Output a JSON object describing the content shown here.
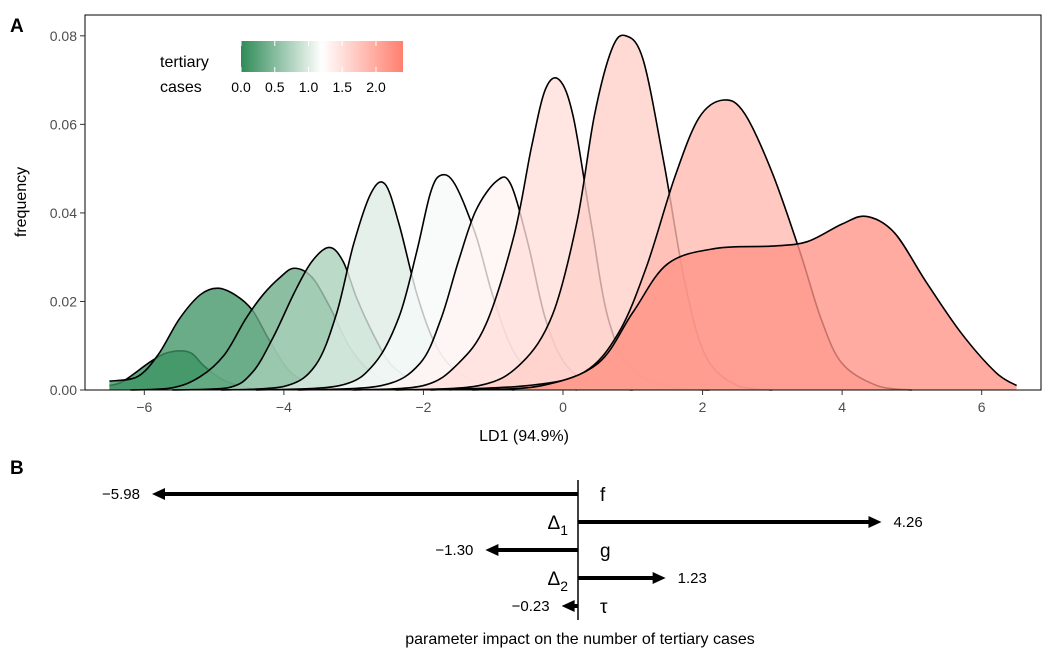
{
  "panel_a": {
    "letter": "A",
    "chart_data": {
      "type": "area",
      "xlabel": "LD1 (94.9%)",
      "ylabel": "frequency",
      "xlim": [
        -6.85,
        6.85
      ],
      "ylim": [
        0,
        0.0847
      ],
      "xticks": [
        -6,
        -4,
        -2,
        0,
        2,
        4,
        6
      ],
      "xtick_labels": [
        "−6",
        "−4",
        "−2",
        "0",
        "2",
        "4",
        "6"
      ],
      "yticks": [
        0,
        0.02,
        0.04,
        0.06,
        0.08
      ],
      "ytick_labels": [
        "0.00",
        "0.02",
        "0.04",
        "0.06",
        "0.08"
      ],
      "legend": {
        "title_line1": "tertiary",
        "title_line2": "cases",
        "position": "top-left",
        "range": [
          0,
          2.4
        ],
        "ticks": [
          0,
          0.5,
          1,
          1.5,
          2
        ],
        "tick_labels": [
          "0.0",
          "0.5",
          "1.0",
          "1.5",
          "2.0"
        ],
        "colors": [
          "#2e8b57",
          "#ffffff",
          "#ff7f6e"
        ]
      },
      "series": [
        {
          "tertiary_cases": 0.03,
          "points": [
            [
              -6.5,
              0.001
            ],
            [
              -6.3,
              0.002
            ],
            [
              -5.9,
              0.0065
            ],
            [
              -5.65,
              0.0085
            ],
            [
              -5.35,
              0.0085
            ],
            [
              -5.15,
              0.0055
            ],
            [
              -4.9,
              0.0025
            ],
            [
              -4.6,
              0.0008
            ],
            [
              -4.3,
              0.0001
            ]
          ]
        },
        {
          "tertiary_cases": 0.1,
          "points": [
            [
              -6.5,
              0.002
            ],
            [
              -6.1,
              0.003
            ],
            [
              -5.8,
              0.008
            ],
            [
              -5.5,
              0.016
            ],
            [
              -5.2,
              0.0215
            ],
            [
              -4.95,
              0.023
            ],
            [
              -4.7,
              0.0215
            ],
            [
              -4.45,
              0.018
            ],
            [
              -4.2,
              0.011
            ],
            [
              -3.9,
              0.004
            ],
            [
              -3.5,
              0.001
            ],
            [
              -3.0,
              0
            ]
          ]
        },
        {
          "tertiary_cases": 0.35,
          "points": [
            [
              -6.2,
              0
            ],
            [
              -5.6,
              0.0005
            ],
            [
              -5.2,
              0.003
            ],
            [
              -4.85,
              0.008
            ],
            [
              -4.55,
              0.016
            ],
            [
              -4.3,
              0.0215
            ],
            [
              -4.05,
              0.0255
            ],
            [
              -3.85,
              0.0275
            ],
            [
              -3.6,
              0.0255
            ],
            [
              -3.35,
              0.019
            ],
            [
              -3.05,
              0.0095
            ],
            [
              -2.75,
              0.004
            ],
            [
              -2.4,
              0.001
            ],
            [
              -2.1,
              0
            ]
          ]
        },
        {
          "tertiary_cases": 0.7,
          "points": [
            [
              -5.6,
              0
            ],
            [
              -4.8,
              0.0005
            ],
            [
              -4.45,
              0.004
            ],
            [
              -4.15,
              0.012
            ],
            [
              -3.85,
              0.022
            ],
            [
              -3.6,
              0.029
            ],
            [
              -3.35,
              0.0322
            ],
            [
              -3.15,
              0.029
            ],
            [
              -2.95,
              0.0205
            ],
            [
              -2.7,
              0.012
            ],
            [
              -2.45,
              0.0055
            ],
            [
              -2.05,
              0.0015
            ],
            [
              -1.6,
              0
            ]
          ]
        },
        {
          "tertiary_cases": 1.0,
          "points": [
            [
              -4.9,
              0
            ],
            [
              -4.0,
              0.0008
            ],
            [
              -3.55,
              0.0055
            ],
            [
              -3.25,
              0.017
            ],
            [
              -3.0,
              0.033
            ],
            [
              -2.75,
              0.0445
            ],
            [
              -2.55,
              0.0465
            ],
            [
              -2.35,
              0.0375
            ],
            [
              -2.1,
              0.022
            ],
            [
              -1.85,
              0.011
            ],
            [
              -1.55,
              0.0045
            ],
            [
              -1.1,
              0.001
            ],
            [
              -0.7,
              0
            ]
          ]
        },
        {
          "tertiary_cases": 1.15,
          "points": [
            [
              -4.4,
              0
            ],
            [
              -3.2,
              0.001
            ],
            [
              -2.7,
              0.006
            ],
            [
              -2.35,
              0.0165
            ],
            [
              -2.1,
              0.031
            ],
            [
              -1.9,
              0.0445
            ],
            [
              -1.75,
              0.0485
            ],
            [
              -1.55,
              0.0465
            ],
            [
              -1.25,
              0.035
            ],
            [
              -1.0,
              0.021
            ],
            [
              -0.7,
              0.0085
            ],
            [
              -0.3,
              0.002
            ],
            [
              0.2,
              0
            ]
          ]
        },
        {
          "tertiary_cases": 1.3,
          "points": [
            [
              -3.8,
              0
            ],
            [
              -2.6,
              0.001
            ],
            [
              -2.05,
              0.006
            ],
            [
              -1.75,
              0.016
            ],
            [
              -1.5,
              0.029
            ],
            [
              -1.25,
              0.0405
            ],
            [
              -0.95,
              0.0472
            ],
            [
              -0.75,
              0.0465
            ],
            [
              -0.5,
              0.033
            ],
            [
              -0.25,
              0.016
            ],
            [
              0.05,
              0.0055
            ],
            [
              0.5,
              0.001
            ],
            [
              1.0,
              0
            ]
          ]
        },
        {
          "tertiary_cases": 1.5,
          "points": [
            [
              -3.0,
              0
            ],
            [
              -2.0,
              0.001
            ],
            [
              -1.5,
              0.006
            ],
            [
              -1.1,
              0.015
            ],
            [
              -0.7,
              0.035
            ],
            [
              -0.45,
              0.055
            ],
            [
              -0.25,
              0.068
            ],
            [
              -0.05,
              0.07
            ],
            [
              0.15,
              0.0615
            ],
            [
              0.4,
              0.038
            ],
            [
              0.65,
              0.016
            ],
            [
              1.0,
              0.0045
            ],
            [
              1.6,
              0.0005
            ],
            [
              2.1,
              0
            ]
          ]
        },
        {
          "tertiary_cases": 1.65,
          "points": [
            [
              -2.4,
              0
            ],
            [
              -1.2,
              0.001
            ],
            [
              -0.6,
              0.006
            ],
            [
              -0.15,
              0.017
            ],
            [
              0.2,
              0.038
            ],
            [
              0.45,
              0.062
            ],
            [
              0.7,
              0.077
            ],
            [
              0.9,
              0.08
            ],
            [
              1.15,
              0.0745
            ],
            [
              1.45,
              0.051
            ],
            [
              1.75,
              0.024
            ],
            [
              2.05,
              0.0075
            ],
            [
              2.5,
              0.001
            ],
            [
              3.0,
              0
            ]
          ]
        },
        {
          "tertiary_cases": 1.85,
          "points": [
            [
              -1.9,
              0
            ],
            [
              -0.5,
              0.001
            ],
            [
              0.3,
              0.004
            ],
            [
              0.8,
              0.013
            ],
            [
              1.2,
              0.028
            ],
            [
              1.6,
              0.048
            ],
            [
              1.95,
              0.0615
            ],
            [
              2.3,
              0.0655
            ],
            [
              2.6,
              0.0625
            ],
            [
              3.0,
              0.049
            ],
            [
              3.4,
              0.031
            ],
            [
              3.7,
              0.016
            ],
            [
              4.0,
              0.006
            ],
            [
              4.5,
              0.001
            ],
            [
              5.0,
              0
            ]
          ]
        },
        {
          "tertiary_cases": 2.2,
          "points": [
            [
              -1.3,
              0
            ],
            [
              -0.3,
              0.001
            ],
            [
              0.5,
              0.006
            ],
            [
              1.0,
              0.0175
            ],
            [
              1.5,
              0.0285
            ],
            [
              2.2,
              0.032
            ],
            [
              3.0,
              0.0325
            ],
            [
              3.5,
              0.0335
            ],
            [
              4.0,
              0.0375
            ],
            [
              4.35,
              0.0392
            ],
            [
              4.75,
              0.0355
            ],
            [
              5.2,
              0.0245
            ],
            [
              5.7,
              0.013
            ],
            [
              6.2,
              0.004
            ],
            [
              6.5,
              0.001
            ]
          ]
        }
      ]
    }
  },
  "panel_b": {
    "letter": "B",
    "chart_data": {
      "type": "bar",
      "orientation": "horizontal",
      "xlabel": "parameter impact on the number of tertiary cases",
      "categories": [
        "f",
        "Δ1",
        "g",
        "Δ2",
        "τ"
      ],
      "values": [
        -5.98,
        4.26,
        -1.3,
        1.23,
        -0.23
      ],
      "value_labels": [
        "−5.98",
        "4.26",
        "−1.30",
        "1.23",
        "−0.23"
      ],
      "params": [
        {
          "name": "f",
          "sub": ""
        },
        {
          "name": "Δ",
          "sub": "1"
        },
        {
          "name": "g",
          "sub": ""
        },
        {
          "name": "Δ",
          "sub": "2"
        },
        {
          "name": "τ",
          "sub": ""
        }
      ]
    }
  }
}
